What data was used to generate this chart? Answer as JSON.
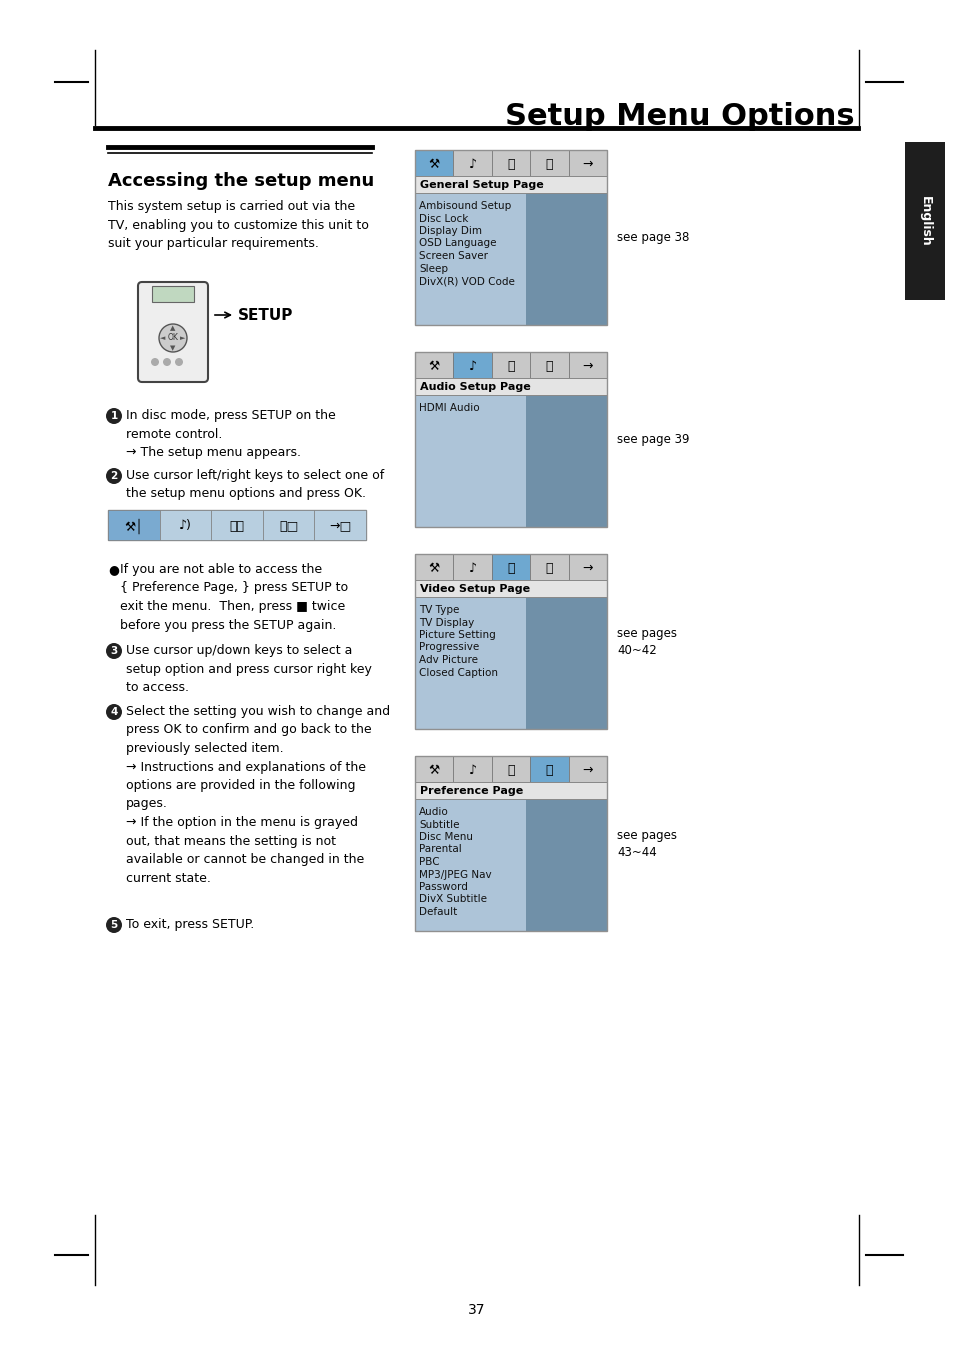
{
  "title": "Setup Menu Options",
  "section_title": "Accessing the setup menu",
  "page_number": "37",
  "bg": "#ffffff",
  "sidebar_bg": "#1e1e1e",
  "sidebar_text": "English",
  "para1": "This system setup is carried out via the\nTV, enabling you to customize this unit to\nsuit your particular requirements.",
  "step1_text": "In disc mode, press SETUP on the\nremote control.\n→ The setup menu appears.",
  "step2_text": "Use cursor left/right keys to select one of\nthe setup menu options and press OK.",
  "bullet_text": "If you are not able to access the\n{ Preference Page, } press SETUP to\nexit the menu.  Then, press ■ twice\nbefore you press the SETUP again.",
  "step3_text": "Use cursor up/down keys to select a\nsetup option and press cursor right key\nto access.",
  "step4_text": "Select the setting you wish to change and\npress OK to confirm and go back to the\npreviously selected item.\n→ Instructions and explanations of the\noptions are provided in the following\npages.\n→ If the option in the menu is grayed\nout, that means the setting is not\navailable or cannot be changed in the\ncurrent state.",
  "step5_text": "To exit, press SETUP.",
  "menu_tab_active_color": "#6ea8d0",
  "menu_tab_inactive_color": "#c8c8c8",
  "menu_header_color": "#e4e4e4",
  "menu_left_color": "#adc4d8",
  "menu_right_color": "#7090a8",
  "menu_border_color": "#909090",
  "menus": [
    {
      "title": "General Setup Page",
      "active_tab": 0,
      "items": [
        "Ambisound Setup",
        "Disc Lock",
        "Display Dim",
        "OSD Language",
        "Screen Saver",
        "Sleep",
        "DivX(R) VOD Code"
      ],
      "see": "see page 38"
    },
    {
      "title": "Audio Setup Page",
      "active_tab": 1,
      "items": [
        "HDMI Audio"
      ],
      "see": "see page 39"
    },
    {
      "title": "Video Setup Page",
      "active_tab": 2,
      "items": [
        "TV Type",
        "TV Display",
        "Picture Setting",
        "Progressive",
        "Adv Picture",
        "Closed Caption"
      ],
      "see": "see pages\n40~42"
    },
    {
      "title": "Preference Page",
      "active_tab": 3,
      "items": [
        "Audio",
        "Subtitle",
        "Disc Menu",
        "Parental",
        "PBC",
        "MP3/JPEG Nav",
        "Password",
        "DivX Subtitle",
        "Default"
      ],
      "see": "see pages\n43~44"
    }
  ]
}
